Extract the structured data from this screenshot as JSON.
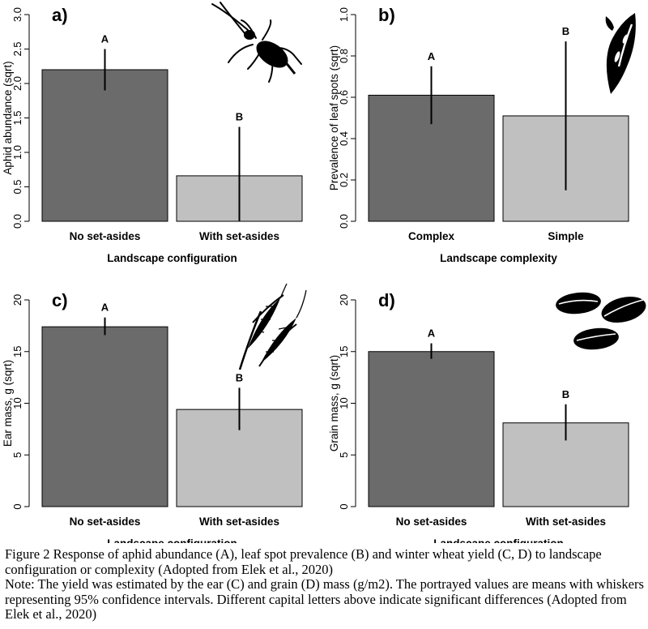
{
  "chart_data": [
    {
      "panel": "a)",
      "type": "bar",
      "categories": [
        "No set-asides",
        "With set-asides"
      ],
      "values": [
        2.2,
        0.66
      ],
      "ci_low": [
        1.9,
        0.0
      ],
      "ci_high": [
        2.5,
        1.37
      ],
      "sig_letters": [
        "A",
        "B"
      ],
      "xlabel": "Landscape configuration",
      "ylabel": "Aphid abundance (sqrt)",
      "ylim": [
        0,
        3.0
      ],
      "yticks": [
        "0.0",
        "0.5",
        "1.0",
        "1.5",
        "2.0",
        "2.5",
        "3.0"
      ],
      "tickvals": [
        0,
        0.5,
        1.0,
        1.5,
        2.0,
        2.5,
        3.0
      ],
      "bar_colors": [
        "#6b6b6b",
        "#c0c0c0"
      ],
      "icon": "aphid-icon"
    },
    {
      "panel": "b)",
      "type": "bar",
      "categories": [
        "Complex",
        "Simple"
      ],
      "values": [
        0.61,
        0.51
      ],
      "ci_low": [
        0.47,
        0.15
      ],
      "ci_high": [
        0.75,
        0.87
      ],
      "sig_letters": [
        "A",
        "B"
      ],
      "xlabel": "Landscape complexity",
      "ylabel": "Prevalence of leaf spots (sqrt)",
      "ylim": [
        0,
        1.0
      ],
      "yticks": [
        "0.0",
        "0.2",
        "0.4",
        "0.6",
        "0.8",
        "1.0"
      ],
      "tickvals": [
        0,
        0.2,
        0.4,
        0.6,
        0.8,
        1.0
      ],
      "bar_colors": [
        "#6b6b6b",
        "#c0c0c0"
      ],
      "icon": "spotted-leaf-icon"
    },
    {
      "panel": "c)",
      "type": "bar",
      "categories": [
        "No set-asides",
        "With set-asides"
      ],
      "values": [
        17.4,
        9.4
      ],
      "ci_low": [
        16.6,
        7.4
      ],
      "ci_high": [
        18.3,
        11.5
      ],
      "sig_letters": [
        "A",
        "B"
      ],
      "xlabel": "Landscape configuration",
      "ylabel": "Ear mass, g (sqrt)",
      "ylim": [
        0,
        20
      ],
      "yticks": [
        "0",
        "5",
        "10",
        "15",
        "20"
      ],
      "tickvals": [
        0,
        5,
        10,
        15,
        20
      ],
      "bar_colors": [
        "#6b6b6b",
        "#c0c0c0"
      ],
      "icon": "wheat-ear-icon"
    },
    {
      "panel": "d)",
      "type": "bar",
      "categories": [
        "No set-asides",
        "With set-asides"
      ],
      "values": [
        15.0,
        8.1
      ],
      "ci_low": [
        14.3,
        6.4
      ],
      "ci_high": [
        15.8,
        9.9
      ],
      "sig_letters": [
        "A",
        "B"
      ],
      "xlabel": "Landscape configuration",
      "ylabel": "Grain mass, g (sqrt)",
      "ylim": [
        0,
        20
      ],
      "yticks": [
        "0",
        "5",
        "10",
        "15",
        "20"
      ],
      "tickvals": [
        0,
        5,
        10,
        15,
        20
      ],
      "bar_colors": [
        "#6b6b6b",
        "#c0c0c0"
      ],
      "icon": "wheat-grain-icon"
    }
  ],
  "caption": {
    "figure_text": "Figure 2 Response of aphid abundance (A), leaf spot prevalence (B) and winter wheat yield (C, D) to landscape configuration or complexity (Adopted from Elek et al., 2020)",
    "note_text": "Note: The yield was estimated by the ear (C) and grain (D) mass (g/m2). The portrayed values are means with whiskers representing 95% confidence intervals. Different capital letters above indicate significant differences (Adopted from Elek et al., 2020)"
  }
}
